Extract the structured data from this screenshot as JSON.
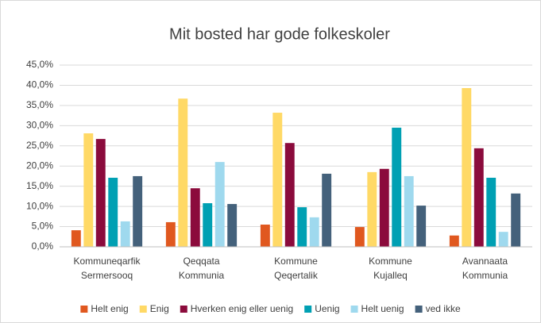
{
  "chart_data": {
    "type": "bar",
    "title": "Mit bosted har gode folkeskoler",
    "categories": [
      [
        "Kommuneqarfik",
        "Sermersooq"
      ],
      [
        "Qeqqata",
        "Kommunia"
      ],
      [
        "Kommune",
        "Qeqertalik"
      ],
      [
        "Kommune",
        "Kujalleq"
      ],
      [
        "Avannaata",
        "Kommunia"
      ]
    ],
    "series": [
      {
        "name": "Helt enig",
        "color": "#e0581f",
        "values": [
          4.1,
          6.1,
          5.5,
          4.9,
          2.8
        ]
      },
      {
        "name": "Enig",
        "color": "#ffd966",
        "values": [
          28.1,
          36.7,
          33.2,
          18.5,
          39.3
        ]
      },
      {
        "name": "Hverken enig eller uenig",
        "color": "#8b0b3c",
        "values": [
          26.7,
          14.5,
          25.7,
          19.3,
          24.4
        ]
      },
      {
        "name": "Uenig",
        "color": "#00a0b3",
        "values": [
          17.1,
          10.8,
          9.8,
          29.5,
          17.1
        ]
      },
      {
        "name": "Helt uenig",
        "color": "#9fd9ee",
        "values": [
          6.3,
          21.0,
          7.3,
          17.5,
          3.7
        ]
      },
      {
        "name": "ved ikke",
        "color": "#44617b",
        "values": [
          17.5,
          10.6,
          18.1,
          10.2,
          13.2
        ]
      }
    ],
    "ylim": [
      0,
      45
    ],
    "yticks": [
      {
        "value": 0,
        "label": "0,0%"
      },
      {
        "value": 5,
        "label": "5,0%"
      },
      {
        "value": 10,
        "label": "10,0%"
      },
      {
        "value": 15,
        "label": "15,0%"
      },
      {
        "value": 20,
        "label": "20,0%"
      },
      {
        "value": 25,
        "label": "25,0%"
      },
      {
        "value": 30,
        "label": "30,0%"
      },
      {
        "value": 35,
        "label": "35,0%"
      },
      {
        "value": 40,
        "label": "40,0%"
      },
      {
        "value": 45,
        "label": "45,0%"
      }
    ],
    "grid": true,
    "legend": "bottom"
  }
}
